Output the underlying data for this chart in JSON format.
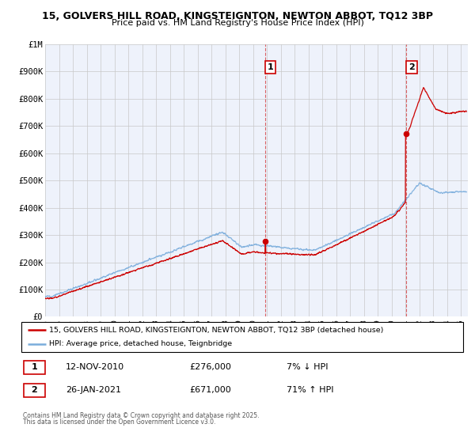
{
  "title_line1": "15, GOLVERS HILL ROAD, KINGSTEIGNTON, NEWTON ABBOT, TQ12 3BP",
  "title_line2": "Price paid vs. HM Land Registry's House Price Index (HPI)",
  "red_label": "15, GOLVERS HILL ROAD, KINGSTEIGNTON, NEWTON ABBOT, TQ12 3BP (detached house)",
  "blue_label": "HPI: Average price, detached house, Teignbridge",
  "marker1_date": "12-NOV-2010",
  "marker1_price": "£276,000",
  "marker1_hpi": "7% ↓ HPI",
  "marker2_date": "26-JAN-2021",
  "marker2_price": "£671,000",
  "marker2_hpi": "71% ↑ HPI",
  "footnote_line1": "Contains HM Land Registry data © Crown copyright and database right 2025.",
  "footnote_line2": "This data is licensed under the Open Government Licence v3.0.",
  "xmin": 1995.0,
  "xmax": 2025.5,
  "ymin": 0,
  "ymax": 1000000,
  "marker1_x": 2010.87,
  "marker2_x": 2021.07,
  "marker1_y": 276000,
  "marker2_y": 671000,
  "red_color": "#cc0000",
  "blue_color": "#7aaddc",
  "background_color": "#eef2fb",
  "grid_color": "#c8c8c8",
  "yticks": [
    0,
    100000,
    200000,
    300000,
    400000,
    500000,
    600000,
    700000,
    800000,
    900000,
    1000000
  ],
  "ylabels": [
    "£0",
    "£100K",
    "£200K",
    "£300K",
    "£400K",
    "£500K",
    "£600K",
    "£700K",
    "£800K",
    "£900K",
    "£1M"
  ]
}
